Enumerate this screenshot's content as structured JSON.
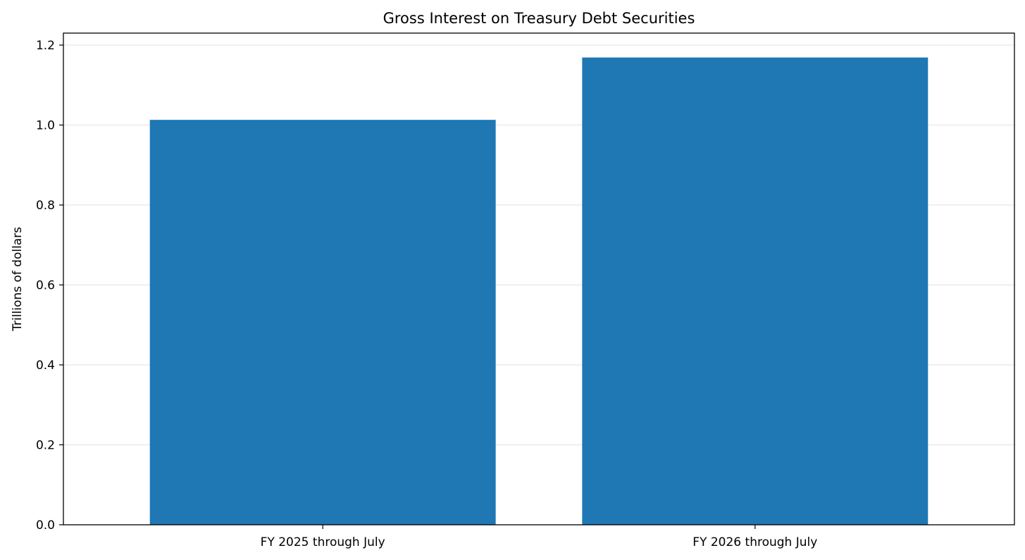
{
  "chart_data": {
    "type": "bar",
    "title": "Gross Interest on Treasury Debt Securities",
    "xlabel": "",
    "ylabel": "Trillions of dollars",
    "categories": [
      "FY 2025 through July",
      "FY 2026 through July"
    ],
    "values": [
      1.013,
      1.169
    ],
    "ylim": [
      0,
      1.23
    ],
    "yticks": [
      "0.0",
      "0.2",
      "0.4",
      "0.6",
      "0.8",
      "1.0",
      "1.2"
    ],
    "grid": "horizontal",
    "bar_color": "#1f77b4"
  }
}
